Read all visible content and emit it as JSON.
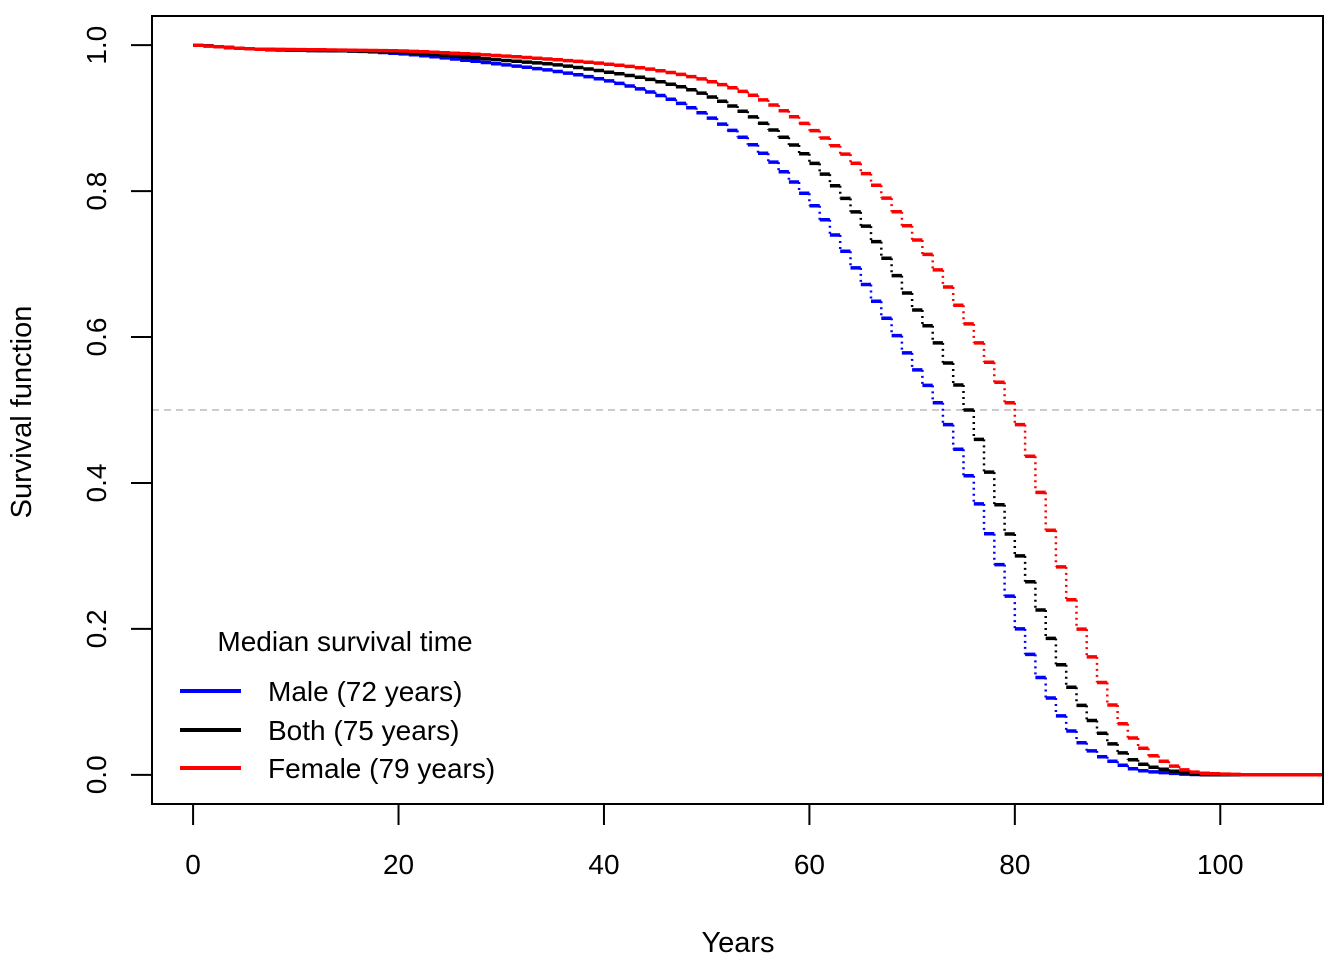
{
  "chart_data": {
    "type": "line",
    "title": "",
    "xlabel": "Years",
    "ylabel": "Survival function",
    "xlim": [
      -4,
      110
    ],
    "ylim": [
      -0.04,
      1.04
    ],
    "xticks": [
      0,
      20,
      40,
      60,
      80,
      100
    ],
    "yticks": [
      0.0,
      0.2,
      0.4,
      0.6,
      0.8,
      1.0
    ],
    "xtick_labels": [
      "0",
      "20",
      "40",
      "60",
      "80",
      "100"
    ],
    "ytick_labels": [
      "0.0",
      "0.2",
      "0.4",
      "0.6",
      "0.8",
      "1.0"
    ],
    "reference_line": {
      "y": 0.5,
      "style": "dashed",
      "color": "#bbbbbb"
    },
    "grid": false,
    "legend": {
      "title": "Median survival time",
      "placement": "bottom-left"
    },
    "x": [
      0,
      5,
      10,
      15,
      20,
      25,
      30,
      35,
      40,
      45,
      50,
      55,
      60,
      65,
      70,
      72,
      75,
      79,
      80,
      85,
      90,
      95,
      100,
      105,
      110
    ],
    "series": [
      {
        "name": "Male (72 years)",
        "color": "#0000ff",
        "values": [
          1.0,
          0.995,
          0.993,
          0.992,
          0.988,
          0.981,
          0.973,
          0.964,
          0.951,
          0.931,
          0.9,
          0.852,
          0.78,
          0.672,
          0.555,
          0.51,
          0.41,
          0.245,
          0.2,
          0.06,
          0.013,
          0.002,
          0.0,
          0.0,
          0.0
        ]
      },
      {
        "name": "Both (75 years)",
        "color": "#000000",
        "values": [
          1.0,
          0.995,
          0.993,
          0.992,
          0.99,
          0.985,
          0.979,
          0.973,
          0.963,
          0.95,
          0.929,
          0.893,
          0.838,
          0.752,
          0.637,
          0.592,
          0.5,
          0.33,
          0.3,
          0.12,
          0.03,
          0.005,
          0.0,
          0.0,
          0.0
        ]
      },
      {
        "name": "Female (79 years)",
        "color": "#ff0000",
        "values": [
          1.0,
          0.995,
          0.994,
          0.993,
          0.992,
          0.989,
          0.985,
          0.98,
          0.974,
          0.965,
          0.95,
          0.925,
          0.883,
          0.824,
          0.733,
          0.692,
          0.618,
          0.51,
          0.48,
          0.24,
          0.07,
          0.012,
          0.001,
          0.0,
          0.0
        ]
      }
    ]
  }
}
